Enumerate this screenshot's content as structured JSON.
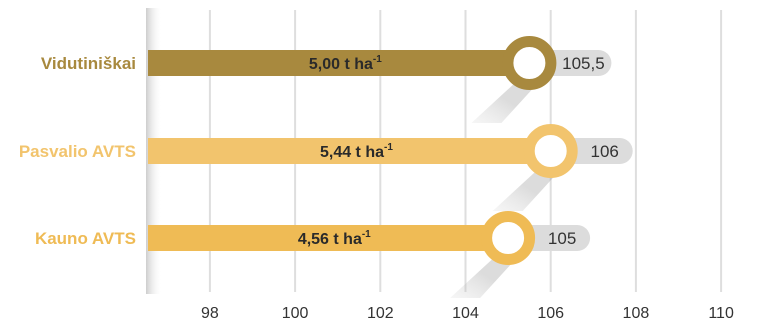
{
  "chart_data": {
    "type": "bar",
    "orientation": "horizontal",
    "categories": [
      "Vidutiniškai",
      "Pasvalio AVTS",
      "Kauno AVTS"
    ],
    "values": [
      105.5,
      106,
      105
    ],
    "value_labels": [
      "105,5",
      "106",
      "105"
    ],
    "bar_labels": [
      "5,00 t ha",
      "5,44 t ha",
      "4,56 t ha"
    ],
    "bar_label_superscript": "-1",
    "colors": [
      "#a8893e",
      "#f2c46d",
      "#efbb55"
    ],
    "x_ticks": [
      98,
      100,
      102,
      104,
      106,
      108,
      110
    ],
    "xlim": [
      96.5,
      110
    ],
    "grid": true
  }
}
